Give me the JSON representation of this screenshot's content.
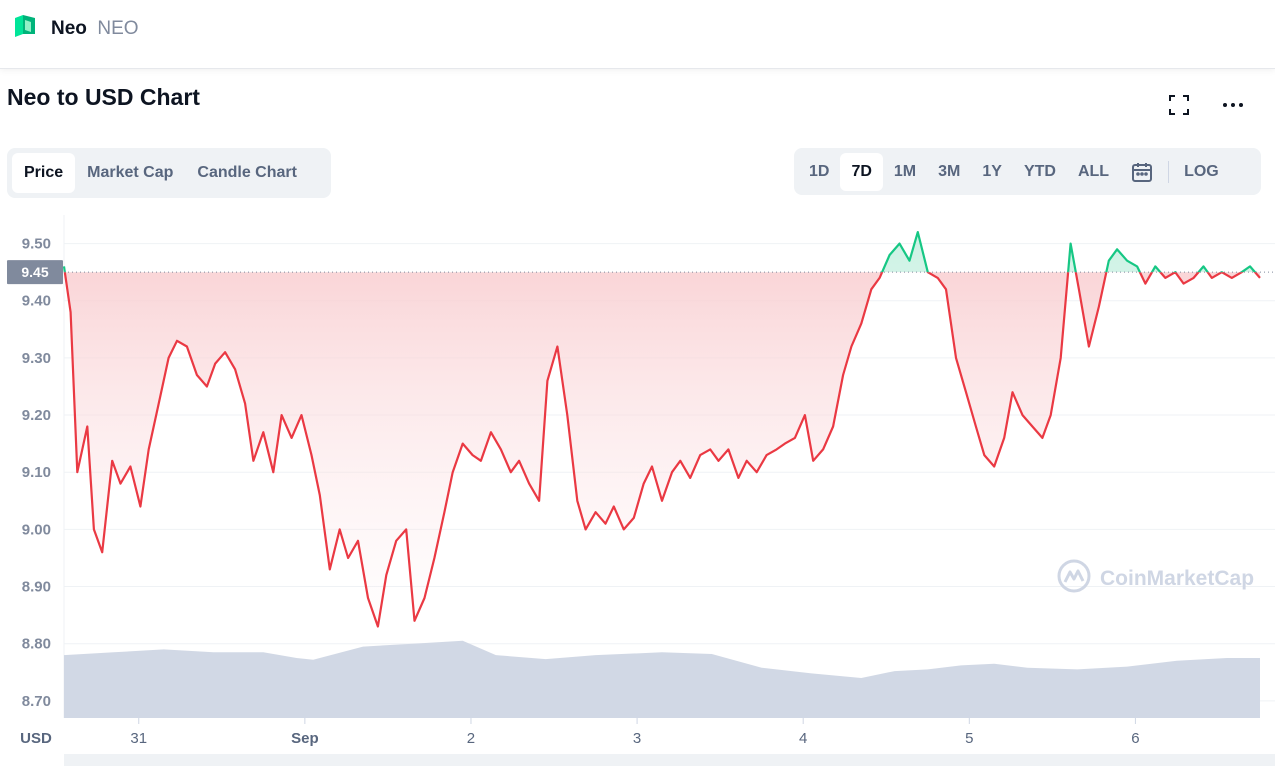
{
  "header": {
    "name": "Neo",
    "symbol": "NEO",
    "logo_icon": "neo-logo-icon",
    "logo_color": "#00e599"
  },
  "chart_title": "Neo to USD Chart",
  "toolbar_icons": [
    "fullscreen-icon",
    "more-options-icon"
  ],
  "tabs": [
    {
      "label": "Price",
      "active": true
    },
    {
      "label": "Market Cap",
      "active": false
    },
    {
      "label": "Candle Chart",
      "active": false
    }
  ],
  "ranges": [
    {
      "label": "1D",
      "active": false
    },
    {
      "label": "7D",
      "active": true
    },
    {
      "label": "1M",
      "active": false
    },
    {
      "label": "3M",
      "active": false
    },
    {
      "label": "1Y",
      "active": false
    },
    {
      "label": "YTD",
      "active": false
    },
    {
      "label": "ALL",
      "active": false
    }
  ],
  "calendar_icon": "calendar-icon",
  "log_label": "LOG",
  "watermark": "CoinMarketCap",
  "colors": {
    "up": "#16c784",
    "down": "#ea3943",
    "volume": "#cfd6e4",
    "baseline_badge": "#808a9d",
    "fill": "#f8c8cb"
  },
  "chart_data": {
    "type": "line",
    "x_unit": "day",
    "ylabel": "USD",
    "ylim": [
      8.67,
      9.55
    ],
    "y_ticks": [
      8.7,
      8.8,
      8.9,
      9.0,
      9.1,
      9.2,
      9.3,
      9.4,
      9.5
    ],
    "y_tick_labels": [
      "8.70",
      "8.80",
      "8.90",
      "9.00",
      "9.10",
      "9.20",
      "9.30",
      "9.40",
      "9.50"
    ],
    "x_ticks": [
      {
        "x": 0.45,
        "label": "31"
      },
      {
        "x": 1.45,
        "label": "Sep"
      },
      {
        "x": 2.45,
        "label": "2"
      },
      {
        "x": 3.45,
        "label": "3"
      },
      {
        "x": 4.45,
        "label": "4"
      },
      {
        "x": 5.45,
        "label": "5"
      },
      {
        "x": 6.45,
        "label": "6"
      }
    ],
    "xlim": [
      0,
      7.2
    ],
    "baseline": {
      "value": 9.45,
      "label": "9.45"
    },
    "price_series": {
      "name": "Price",
      "x": [
        0.0,
        0.04,
        0.08,
        0.14,
        0.18,
        0.23,
        0.29,
        0.34,
        0.4,
        0.46,
        0.51,
        0.57,
        0.63,
        0.68,
        0.74,
        0.8,
        0.86,
        0.91,
        0.97,
        1.03,
        1.09,
        1.14,
        1.2,
        1.26,
        1.31,
        1.37,
        1.43,
        1.49,
        1.54,
        1.6,
        1.66,
        1.71,
        1.77,
        1.83,
        1.89,
        1.94,
        2.0,
        2.06,
        2.11,
        2.17,
        2.23,
        2.29,
        2.34,
        2.4,
        2.46,
        2.51,
        2.57,
        2.63,
        2.69,
        2.74,
        2.8,
        2.86,
        2.91,
        2.97,
        3.03,
        3.09,
        3.14,
        3.2,
        3.26,
        3.31,
        3.37,
        3.43,
        3.49,
        3.54,
        3.6,
        3.66,
        3.71,
        3.77,
        3.83,
        3.89,
        3.94,
        4.0,
        4.06,
        4.11,
        4.17,
        4.23,
        4.29,
        4.34,
        4.4,
        4.46,
        4.51,
        4.57,
        4.63,
        4.69,
        4.74,
        4.8,
        4.86,
        4.91,
        4.97,
        5.03,
        5.09,
        5.14,
        5.2,
        5.26,
        5.31,
        5.37,
        5.43,
        5.49,
        5.54,
        5.6,
        5.66,
        5.71,
        5.77,
        5.83,
        5.89,
        5.94,
        6.0,
        6.06,
        6.11,
        6.17,
        6.23,
        6.29,
        6.34,
        6.4,
        6.46,
        6.51,
        6.57,
        6.63,
        6.69,
        6.74,
        6.8,
        6.86,
        6.91,
        6.97,
        7.03,
        7.09,
        7.14,
        7.2
      ],
      "y": [
        9.46,
        9.38,
        9.1,
        9.18,
        9.0,
        8.96,
        9.12,
        9.08,
        9.11,
        9.04,
        9.14,
        9.22,
        9.3,
        9.33,
        9.32,
        9.27,
        9.25,
        9.29,
        9.31,
        9.28,
        9.22,
        9.12,
        9.17,
        9.1,
        9.2,
        9.16,
        9.2,
        9.13,
        9.06,
        8.93,
        9.0,
        8.95,
        8.98,
        8.88,
        8.83,
        8.92,
        8.98,
        9.0,
        8.84,
        8.88,
        8.95,
        9.03,
        9.1,
        9.15,
        9.13,
        9.12,
        9.17,
        9.14,
        9.1,
        9.12,
        9.08,
        9.05,
        9.26,
        9.32,
        9.2,
        9.05,
        9.0,
        9.03,
        9.01,
        9.04,
        9.0,
        9.02,
        9.08,
        9.11,
        9.05,
        9.1,
        9.12,
        9.09,
        9.13,
        9.14,
        9.12,
        9.14,
        9.09,
        9.12,
        9.1,
        9.13,
        9.14,
        9.15,
        9.16,
        9.2,
        9.12,
        9.14,
        9.18,
        9.27,
        9.32,
        9.36,
        9.42,
        9.44,
        9.48,
        9.5,
        9.47,
        9.52,
        9.45,
        9.44,
        9.42,
        9.3,
        9.24,
        9.18,
        9.13,
        9.11,
        9.16,
        9.24,
        9.2,
        9.18,
        9.16,
        9.2,
        9.3,
        9.5,
        9.42,
        9.32,
        9.39,
        9.47,
        9.49,
        9.47,
        9.46,
        9.43,
        9.46,
        9.44,
        9.45,
        9.43,
        9.44,
        9.46,
        9.44,
        9.45,
        9.44,
        9.45,
        9.46,
        9.44
      ]
    },
    "volume_series": {
      "name": "Volume",
      "x": [
        0.0,
        0.3,
        0.6,
        0.9,
        1.2,
        1.4,
        1.5,
        1.8,
        2.1,
        2.4,
        2.6,
        2.9,
        3.2,
        3.6,
        3.9,
        4.2,
        4.5,
        4.8,
        5.0,
        5.2,
        5.4,
        5.6,
        5.8,
        6.1,
        6.4,
        6.7,
        7.0,
        7.2
      ],
      "y": [
        8.78,
        8.785,
        8.79,
        8.785,
        8.785,
        8.775,
        8.772,
        8.795,
        8.8,
        8.805,
        8.78,
        8.773,
        8.78,
        8.785,
        8.782,
        8.758,
        8.748,
        8.74,
        8.752,
        8.755,
        8.762,
        8.765,
        8.758,
        8.755,
        8.76,
        8.77,
        8.775,
        8.775
      ]
    }
  }
}
